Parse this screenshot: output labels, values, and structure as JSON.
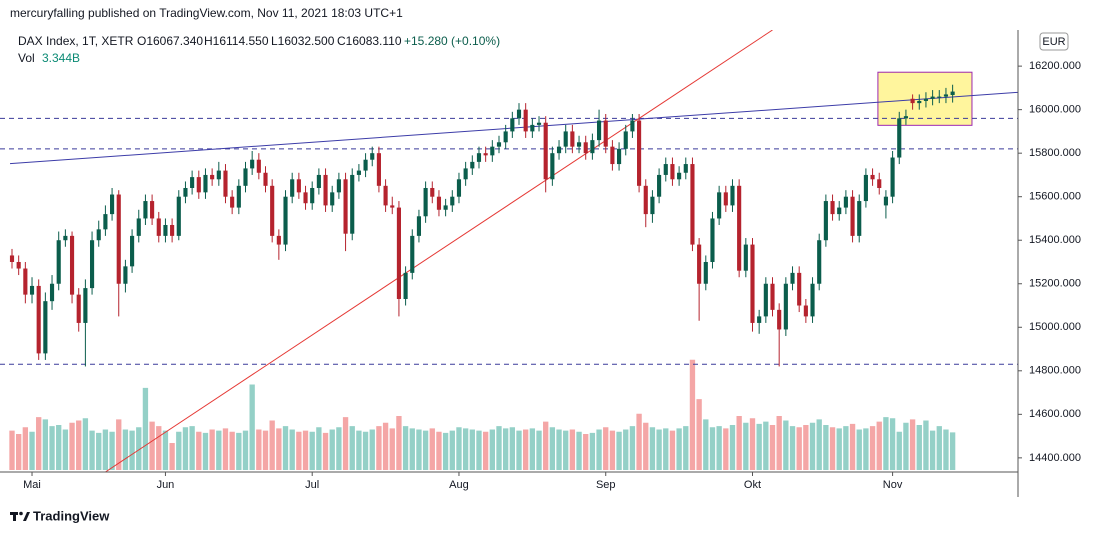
{
  "header": "mercuryfalling published on TradingView.com, Nov 11, 2021 18:03 UTC+1",
  "footer": "TradingView",
  "chart_data": {
    "type": "candlestick",
    "legend": {
      "symbol": "DAX Index, 1T, XETR",
      "open": "O16067.340",
      "high": "H16114.550",
      "low": "L16032.500",
      "close": "C16083.110",
      "change": "+15.280 (+0.10%)",
      "volume": "Vol",
      "volume_value": "3.344B"
    },
    "currency": "EUR",
    "up_color": "#0b5d4c",
    "down_color": "#b5232e",
    "vol_up_color": "#94d0c7",
    "vol_down_color": "#f4a6a6",
    "ylim": [
      14335,
      16366
    ],
    "yticks": [
      {
        "value": 14400,
        "label": "14400.000"
      },
      {
        "value": 14600,
        "label": "14600.000"
      },
      {
        "value": 14800,
        "label": "14800.000"
      },
      {
        "value": 15000,
        "label": "15000.000"
      },
      {
        "value": 15200,
        "label": "15200.000"
      },
      {
        "value": 15400,
        "label": "15400.000"
      },
      {
        "value": 15600,
        "label": "15600.000"
      },
      {
        "value": 15800,
        "label": "15800.000"
      },
      {
        "value": 16000,
        "label": "16000.000"
      },
      {
        "value": 16200,
        "label": "16200.000"
      }
    ],
    "xlim": [
      -1.8,
      150.8
    ],
    "xticks": [
      {
        "value": 3,
        "label": "Mai"
      },
      {
        "value": 23,
        "label": "Jun"
      },
      {
        "value": 45,
        "label": "Jul"
      },
      {
        "value": 67,
        "label": "Aug"
      },
      {
        "value": 89,
        "label": "Sep"
      },
      {
        "value": 111,
        "label": "Okt"
      },
      {
        "value": 132,
        "label": "Nov"
      }
    ],
    "vlim": [
      0,
      12
    ],
    "hlines": [
      {
        "value": 15820,
        "color": "#3a3a9a"
      },
      {
        "value": 15960,
        "color": "#3a3a9a"
      },
      {
        "value": 14830,
        "color": "#3a3a9a"
      }
    ],
    "trendlines": [
      {
        "x": [
          -0.3,
          151
        ],
        "y": [
          15752,
          16080
        ],
        "color": "#3c3ca8"
      },
      {
        "x": [
          14,
          114
        ],
        "y": [
          14335,
          16366
        ],
        "color": "#e53935"
      }
    ],
    "highlight": {
      "x": [
        129.8,
        143.9
      ],
      "y": [
        15928,
        16172
      ],
      "color": "#fff59d",
      "border": "#9c27b0"
    },
    "ohlc": [
      [
        15330,
        15360,
        15270,
        15300
      ],
      [
        15300,
        15330,
        15240,
        15270
      ],
      [
        15270,
        15300,
        15110,
        15150
      ],
      [
        15150,
        15230,
        15110,
        15190
      ],
      [
        15190,
        15220,
        14850,
        14880
      ],
      [
        14880,
        15160,
        14850,
        15120
      ],
      [
        15120,
        15240,
        15080,
        15200
      ],
      [
        15200,
        15440,
        15170,
        15400
      ],
      [
        15400,
        15450,
        15370,
        15420
      ],
      [
        15420,
        15440,
        15110,
        15150
      ],
      [
        15150,
        15180,
        14980,
        15020
      ],
      [
        15020,
        15220,
        14820,
        15180
      ],
      [
        15180,
        15440,
        15150,
        15400
      ],
      [
        15400,
        15490,
        15370,
        15450
      ],
      [
        15450,
        15560,
        15420,
        15520
      ],
      [
        15520,
        15640,
        15490,
        15610
      ],
      [
        15610,
        15630,
        15050,
        15200
      ],
      [
        15200,
        15310,
        15160,
        15280
      ],
      [
        15280,
        15450,
        15250,
        15420
      ],
      [
        15420,
        15540,
        15390,
        15500
      ],
      [
        15500,
        15610,
        15470,
        15580
      ],
      [
        15580,
        15610,
        15470,
        15500
      ],
      [
        15500,
        15530,
        15390,
        15420
      ],
      [
        15420,
        15500,
        15390,
        15470
      ],
      [
        15470,
        15500,
        15390,
        15420
      ],
      [
        15420,
        15630,
        15400,
        15600
      ],
      [
        15600,
        15670,
        15570,
        15640
      ],
      [
        15640,
        15720,
        15610,
        15690
      ],
      [
        15690,
        15720,
        15590,
        15620
      ],
      [
        15620,
        15730,
        15590,
        15700
      ],
      [
        15700,
        15730,
        15650,
        15680
      ],
      [
        15680,
        15760,
        15650,
        15720
      ],
      [
        15720,
        15750,
        15570,
        15600
      ],
      [
        15600,
        15630,
        15520,
        15550
      ],
      [
        15550,
        15680,
        15520,
        15650
      ],
      [
        15650,
        15760,
        15620,
        15730
      ],
      [
        15730,
        15810,
        15700,
        15770
      ],
      [
        15770,
        15800,
        15680,
        15710
      ],
      [
        15710,
        15740,
        15620,
        15650
      ],
      [
        15650,
        15680,
        15390,
        15420
      ],
      [
        15420,
        15450,
        15310,
        15380
      ],
      [
        15380,
        15630,
        15350,
        15600
      ],
      [
        15600,
        15710,
        15570,
        15680
      ],
      [
        15680,
        15710,
        15590,
        15620
      ],
      [
        15620,
        15650,
        15540,
        15570
      ],
      [
        15570,
        15670,
        15540,
        15640
      ],
      [
        15640,
        15730,
        15610,
        15700
      ],
      [
        15700,
        15730,
        15530,
        15560
      ],
      [
        15560,
        15650,
        15530,
        15620
      ],
      [
        15620,
        15710,
        15590,
        15680
      ],
      [
        15680,
        15710,
        15350,
        15430
      ],
      [
        15430,
        15730,
        15400,
        15700
      ],
      [
        15700,
        15750,
        15670,
        15720
      ],
      [
        15720,
        15800,
        15690,
        15770
      ],
      [
        15770,
        15830,
        15740,
        15800
      ],
      [
        15800,
        15830,
        15620,
        15650
      ],
      [
        15650,
        15680,
        15530,
        15560
      ],
      [
        15560,
        15600,
        15520,
        15550
      ],
      [
        15550,
        15580,
        15050,
        15130
      ],
      [
        15130,
        15280,
        15100,
        15250
      ],
      [
        15250,
        15450,
        15220,
        15420
      ],
      [
        15420,
        15540,
        15390,
        15510
      ],
      [
        15510,
        15670,
        15480,
        15640
      ],
      [
        15640,
        15670,
        15570,
        15600
      ],
      [
        15600,
        15630,
        15510,
        15540
      ],
      [
        15540,
        15590,
        15510,
        15560
      ],
      [
        15560,
        15630,
        15530,
        15600
      ],
      [
        15600,
        15710,
        15570,
        15680
      ],
      [
        15680,
        15760,
        15650,
        15730
      ],
      [
        15730,
        15790,
        15700,
        15760
      ],
      [
        15760,
        15830,
        15730,
        15800
      ],
      [
        15800,
        15830,
        15760,
        15790
      ],
      [
        15790,
        15860,
        15760,
        15830
      ],
      [
        15830,
        15880,
        15800,
        15850
      ],
      [
        15850,
        15930,
        15820,
        15900
      ],
      [
        15900,
        15990,
        15870,
        15960
      ],
      [
        15960,
        16030,
        15930,
        16000
      ],
      [
        16000,
        16030,
        15870,
        15900
      ],
      [
        15900,
        15960,
        15870,
        15930
      ],
      [
        15930,
        15970,
        15900,
        15940
      ],
      [
        15940,
        15970,
        15620,
        15680
      ],
      [
        15680,
        15830,
        15650,
        15800
      ],
      [
        15800,
        15860,
        15770,
        15830
      ],
      [
        15830,
        15930,
        15800,
        15900
      ],
      [
        15900,
        15930,
        15800,
        15830
      ],
      [
        15830,
        15880,
        15800,
        15850
      ],
      [
        15850,
        15880,
        15770,
        15800
      ],
      [
        15800,
        15890,
        15770,
        15860
      ],
      [
        15860,
        16000,
        15830,
        15950
      ],
      [
        15950,
        15980,
        15800,
        15830
      ],
      [
        15830,
        15860,
        15720,
        15750
      ],
      [
        15750,
        15850,
        15720,
        15820
      ],
      [
        15820,
        15930,
        15790,
        15900
      ],
      [
        15900,
        15980,
        15870,
        15950
      ],
      [
        15950,
        15980,
        15620,
        15650
      ],
      [
        15650,
        15680,
        15460,
        15520
      ],
      [
        15520,
        15630,
        15480,
        15600
      ],
      [
        15600,
        15730,
        15570,
        15700
      ],
      [
        15700,
        15780,
        15670,
        15750
      ],
      [
        15750,
        15780,
        15650,
        15680
      ],
      [
        15680,
        15740,
        15650,
        15710
      ],
      [
        15710,
        15780,
        15680,
        15750
      ],
      [
        15750,
        15780,
        15350,
        15380
      ],
      [
        15380,
        15410,
        15030,
        15200
      ],
      [
        15200,
        15330,
        15170,
        15300
      ],
      [
        15300,
        15530,
        15270,
        15500
      ],
      [
        15500,
        15650,
        15470,
        15620
      ],
      [
        15620,
        15650,
        15530,
        15560
      ],
      [
        15560,
        15680,
        15530,
        15650
      ],
      [
        15650,
        15680,
        15230,
        15260
      ],
      [
        15260,
        15410,
        15230,
        15380
      ],
      [
        15380,
        15410,
        14980,
        15020
      ],
      [
        15020,
        15080,
        14970,
        15050
      ],
      [
        15050,
        15230,
        15020,
        15200
      ],
      [
        15200,
        15230,
        15050,
        15080
      ],
      [
        15080,
        15110,
        14820,
        14990
      ],
      [
        14990,
        15230,
        14960,
        15200
      ],
      [
        15200,
        15280,
        15170,
        15250
      ],
      [
        15250,
        15280,
        15070,
        15100
      ],
      [
        15100,
        15130,
        15020,
        15050
      ],
      [
        15050,
        15230,
        15020,
        15200
      ],
      [
        15200,
        15430,
        15170,
        15400
      ],
      [
        15400,
        15610,
        15370,
        15580
      ],
      [
        15580,
        15610,
        15490,
        15520
      ],
      [
        15520,
        15580,
        15490,
        15550
      ],
      [
        15550,
        15630,
        15520,
        15600
      ],
      [
        15600,
        15630,
        15390,
        15420
      ],
      [
        15420,
        15610,
        15390,
        15580
      ],
      [
        15580,
        15730,
        15550,
        15700
      ],
      [
        15700,
        15730,
        15650,
        15680
      ],
      [
        15680,
        15710,
        15610,
        15640
      ],
      [
        15560,
        15630,
        15500,
        15600
      ],
      [
        15600,
        15810,
        15570,
        15780
      ],
      [
        15780,
        15990,
        15750,
        15960
      ],
      [
        15960,
        16000,
        15930,
        15970
      ],
      [
        16050,
        16070,
        16000,
        16030
      ],
      [
        16030,
        16070,
        16000,
        16040
      ],
      [
        16040,
        16080,
        16010,
        16050
      ],
      [
        16050,
        16090,
        16020,
        16060
      ],
      [
        16060,
        16090,
        16030,
        16060
      ],
      [
        16060,
        16100,
        16030,
        16070
      ],
      [
        16067.34,
        16114.55,
        16032.5,
        16083.11
      ]
    ],
    "volumes": [
      3.5,
      3.2,
      3.8,
      3.4,
      4.7,
      4.5,
      3.9,
      4.0,
      3.6,
      4.2,
      4.4,
      4.6,
      3.5,
      3.3,
      3.6,
      3.4,
      4.5,
      3.6,
      3.5,
      3.8,
      7.3,
      4.3,
      3.9,
      3.5,
      2.4,
      3.4,
      3.8,
      3.9,
      3.4,
      3.3,
      3.6,
      3.5,
      3.7,
      3.4,
      3.3,
      3.5,
      7.6,
      3.6,
      3.5,
      4.4,
      3.7,
      3.9,
      3.6,
      3.4,
      3.5,
      3.4,
      3.8,
      3.3,
      3.6,
      3.8,
      4.7,
      3.9,
      3.5,
      3.4,
      3.6,
      3.9,
      4.2,
      3.7,
      4.8,
      3.9,
      3.7,
      3.6,
      3.5,
      3.7,
      3.4,
      3.3,
      3.5,
      3.8,
      3.7,
      3.6,
      3.5,
      3.4,
      3.6,
      3.9,
      3.7,
      3.8,
      3.5,
      3.6,
      3.7,
      3.5,
      4.3,
      3.8,
      3.6,
      3.5,
      3.6,
      3.4,
      3.2,
      3.3,
      3.6,
      3.8,
      3.5,
      3.4,
      3.6,
      3.9,
      5.0,
      4.2,
      3.8,
      3.6,
      3.7,
      3.5,
      3.7,
      3.9,
      9.8,
      6.3,
      4.5,
      3.8,
      3.9,
      3.7,
      4.0,
      4.8,
      4.2,
      4.6,
      4.1,
      4.3,
      4.0,
      4.8,
      4.4,
      3.9,
      3.8,
      4.0,
      4.2,
      4.5,
      4.0,
      3.8,
      3.7,
      3.9,
      4.1,
      3.6,
      3.7,
      3.9,
      4.3,
      4.7,
      4.6,
      3.4,
      4.2,
      4.5,
      4.0,
      4.4,
      3.5,
      3.9,
      3.6,
      3.344
    ]
  }
}
